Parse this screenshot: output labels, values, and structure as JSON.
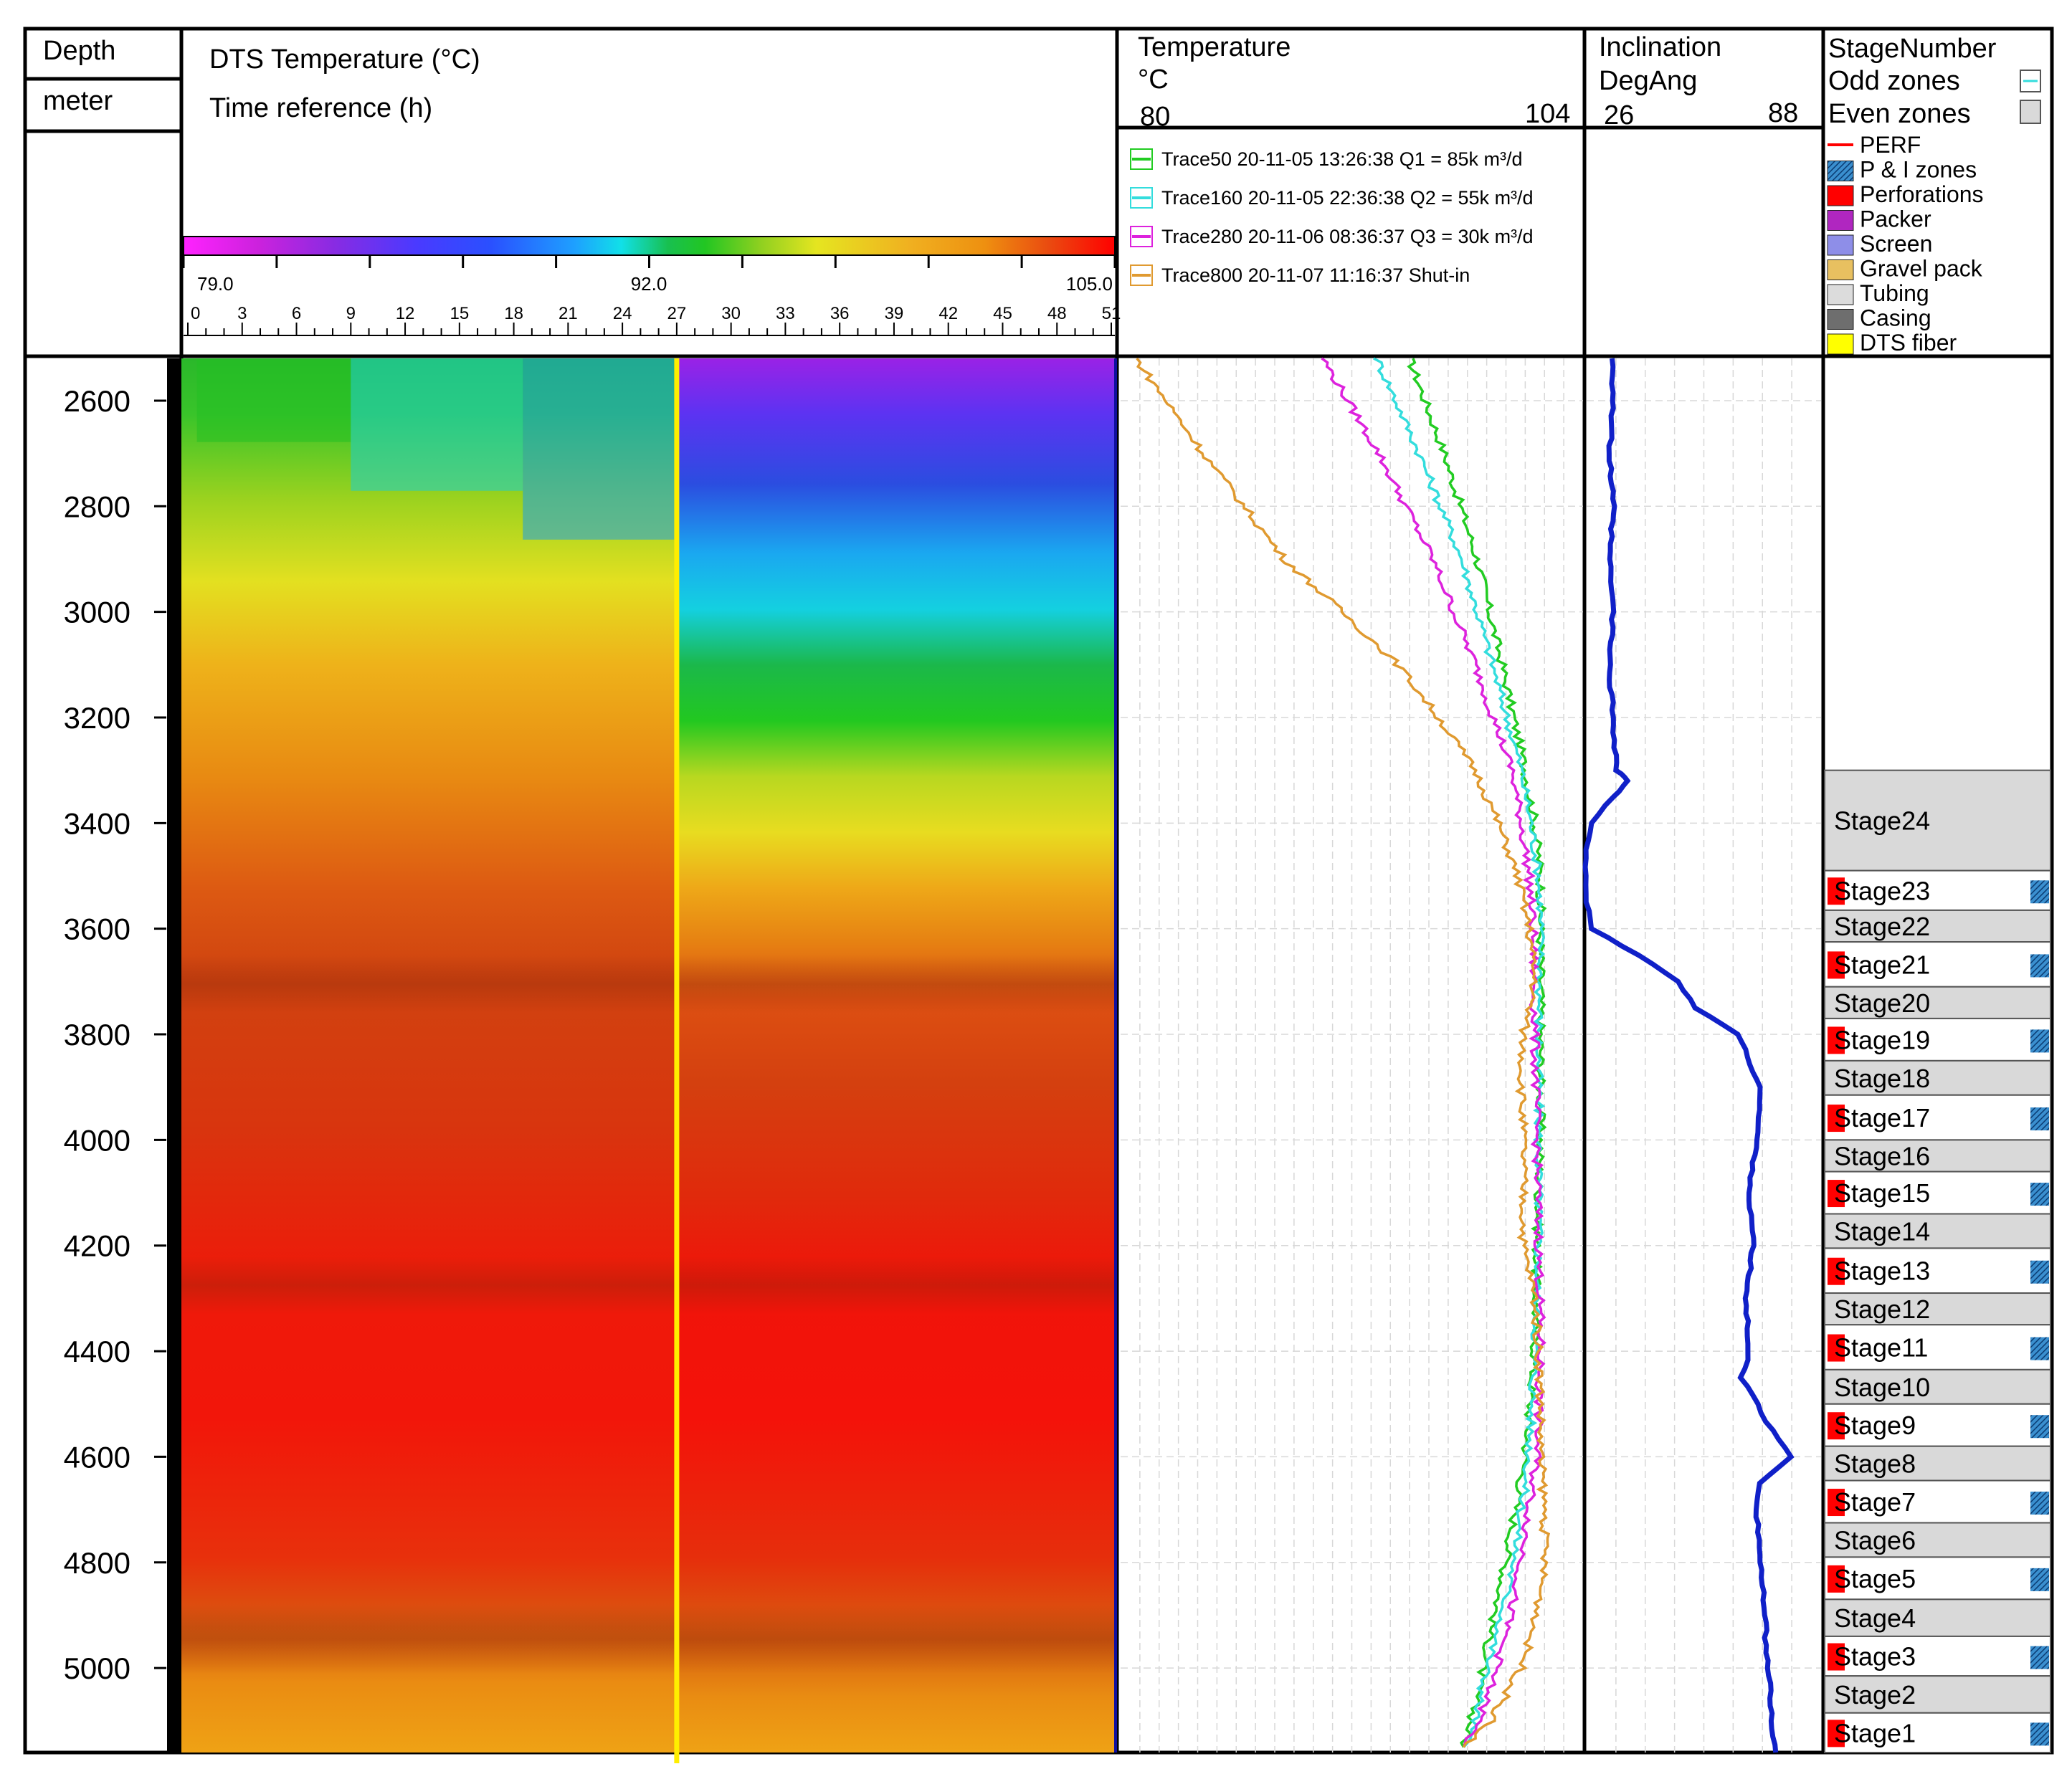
{
  "header": {
    "depth_label": "Depth",
    "depth_unit": "meter",
    "dts_title": "DTS Temperature (°C)",
    "time_ref": "Time reference (h)",
    "colorbar": {
      "min": "79.0",
      "mid": "92.0",
      "max": "105.0",
      "time_ticks": [
        "0",
        "3",
        "6",
        "9",
        "12",
        "15",
        "18",
        "21",
        "24",
        "27",
        "30",
        "33",
        "36",
        "39",
        "42",
        "45",
        "48",
        "51"
      ]
    },
    "temperature": {
      "title": "Temperature",
      "unit": "°C",
      "min": "80",
      "max": "104"
    },
    "inclination": {
      "title": "Inclination",
      "unit": "DegAng",
      "min": "26",
      "max": "88"
    },
    "stage_panel": {
      "title": "StageNumber",
      "odd_label": "Odd zones",
      "even_label": "Even zones",
      "legend": [
        "PERF",
        "P & I zones",
        "Perforations",
        "Packer",
        "Screen",
        "Gravel pack",
        "Tubing",
        "Casing",
        "DTS fiber"
      ]
    }
  },
  "depth_ticks": [
    "2600",
    "2800",
    "3000",
    "3200",
    "3400",
    "3600",
    "3800",
    "4000",
    "4200",
    "4400",
    "4600",
    "4800",
    "5000"
  ],
  "colors": {
    "trace50": "#22cc22",
    "trace160": "#33dddd",
    "trace280": "#dd22dd",
    "trace800": "#e09a30",
    "inclination": "#1020c8",
    "yellow_line": "#ffee00",
    "perforation": "#ff0000",
    "pi_zone": "#3a8fcf",
    "even_zone": "#d9d9d9"
  },
  "chart_data": [
    {
      "type": "heatmap",
      "title": "DTS Temperature (°C)",
      "xlabel": "Time reference (h)",
      "ylabel": "Depth (meter)",
      "xlim": [
        0,
        51
      ],
      "ylim": [
        2520,
        5160
      ],
      "color_range": [
        79.0,
        105.0
      ],
      "marker_time": 27
    },
    {
      "type": "line",
      "title": "Temperature",
      "xlabel": "°C",
      "xlim": [
        80,
        104
      ],
      "ylim": [
        2520,
        5160
      ],
      "series": [
        {
          "name": "Trace50 20-11-05 13:26:38 Q1 = 85k m³/d",
          "depth": [
            2520,
            2700,
            2900,
            3100,
            3300,
            3400,
            3500,
            3600,
            3800,
            4000,
            4200,
            4400,
            4600,
            4800,
            4900,
            5000,
            5100,
            5150
          ],
          "temp": [
            95.0,
            96.8,
            98.5,
            99.8,
            101.0,
            101.5,
            101.8,
            101.8,
            101.8,
            101.8,
            101.6,
            101.5,
            101.0,
            100.0,
            99.4,
            98.8,
            98.2,
            97.8
          ]
        },
        {
          "name": "Trace160 20-11-05 22:36:38 Q2 = 55k m³/d",
          "depth": [
            2520,
            2700,
            2900,
            3100,
            3300,
            3400,
            3500,
            3600,
            3800,
            4000,
            4200,
            4400,
            4600,
            4800,
            4900,
            5000,
            5100,
            5150
          ],
          "temp": [
            93.3,
            95.5,
            97.7,
            99.3,
            100.8,
            101.3,
            101.7,
            101.8,
            101.7,
            101.7,
            101.7,
            101.5,
            101.2,
            100.4,
            99.8,
            99.0,
            98.4,
            97.8
          ]
        },
        {
          "name": "Trace280 20-11-06 08:36:37 Q3 = 30k m³/d",
          "depth": [
            2520,
            2700,
            2900,
            3100,
            3300,
            3400,
            3500,
            3600,
            3800,
            4000,
            4200,
            4400,
            4600,
            4800,
            4900,
            5000,
            5100,
            5150
          ],
          "temp": [
            90.5,
            93.4,
            96.2,
            98.4,
            100.3,
            100.8,
            101.2,
            101.4,
            101.5,
            101.6,
            101.7,
            101.8,
            101.6,
            100.8,
            100.2,
            99.5,
            98.6,
            97.8
          ]
        },
        {
          "name": "Trace800 20-11-07 11:16:37 Shut-in",
          "depth": [
            2520,
            2700,
            2900,
            3000,
            3100,
            3200,
            3300,
            3400,
            3500,
            3600,
            3700,
            3800,
            3900,
            4000,
            4100,
            4200,
            4300,
            4400,
            4500,
            4600,
            4700,
            4800,
            4900,
            5000,
            5100,
            5150
          ],
          "temp": [
            80.8,
            84.3,
            88.5,
            91.5,
            94.4,
            96.5,
            98.4,
            99.6,
            100.6,
            101.2,
            101.5,
            100.9,
            100.8,
            100.9,
            100.9,
            100.9,
            101.5,
            101.7,
            101.8,
            101.8,
            102.0,
            102.0,
            101.6,
            100.8,
            99.2,
            97.8
          ]
        }
      ]
    },
    {
      "type": "line",
      "title": "Inclination",
      "xlabel": "DegAng",
      "xlim": [
        26,
        88
      ],
      "ylim": [
        2520,
        5160
      ],
      "series": [
        {
          "name": "Inclination",
          "depth": [
            2520,
            2600,
            2700,
            2800,
            2900,
            3000,
            3100,
            3200,
            3300,
            3320,
            3350,
            3400,
            3450,
            3500,
            3550,
            3600,
            3650,
            3700,
            3750,
            3800,
            3900,
            4000,
            4100,
            4200,
            4300,
            4400,
            4450,
            4500,
            4550,
            4600,
            4650,
            4700,
            4800,
            4900,
            5000,
            5100,
            5160
          ],
          "value": [
            33,
            33,
            32,
            33,
            32,
            33,
            32,
            33,
            34,
            37,
            33,
            27,
            26,
            26,
            26,
            27,
            40,
            50,
            55,
            66,
            72,
            71,
            69,
            70,
            68,
            69,
            67,
            71,
            75,
            80,
            72,
            71,
            72,
            73,
            74,
            75,
            76
          ]
        }
      ]
    }
  ],
  "stages": [
    {
      "name": "Stage24",
      "top": 3300,
      "bottom": 3490,
      "odd": false
    },
    {
      "name": "Stage23",
      "top": 3490,
      "bottom": 3565,
      "odd": true
    },
    {
      "name": "Stage22",
      "top": 3565,
      "bottom": 3625,
      "odd": false
    },
    {
      "name": "Stage21",
      "top": 3625,
      "bottom": 3710,
      "odd": true
    },
    {
      "name": "Stage20",
      "top": 3710,
      "bottom": 3770,
      "odd": false
    },
    {
      "name": "Stage19",
      "top": 3770,
      "bottom": 3850,
      "odd": true
    },
    {
      "name": "Stage18",
      "top": 3850,
      "bottom": 3915,
      "odd": false
    },
    {
      "name": "Stage17",
      "top": 3915,
      "bottom": 4000,
      "odd": true
    },
    {
      "name": "Stage16",
      "top": 4000,
      "bottom": 4060,
      "odd": false
    },
    {
      "name": "Stage15",
      "top": 4060,
      "bottom": 4140,
      "odd": true
    },
    {
      "name": "Stage14",
      "top": 4140,
      "bottom": 4205,
      "odd": false
    },
    {
      "name": "Stage13",
      "top": 4205,
      "bottom": 4290,
      "odd": true
    },
    {
      "name": "Stage12",
      "top": 4290,
      "bottom": 4350,
      "odd": false
    },
    {
      "name": "Stage11",
      "top": 4350,
      "bottom": 4435,
      "odd": true
    },
    {
      "name": "Stage10",
      "top": 4435,
      "bottom": 4500,
      "odd": false
    },
    {
      "name": "Stage9",
      "top": 4500,
      "bottom": 4580,
      "odd": true
    },
    {
      "name": "Stage8",
      "top": 4580,
      "bottom": 4645,
      "odd": false
    },
    {
      "name": "Stage7",
      "top": 4645,
      "bottom": 4725,
      "odd": true
    },
    {
      "name": "Stage6",
      "top": 4725,
      "bottom": 4790,
      "odd": false
    },
    {
      "name": "Stage5",
      "top": 4790,
      "bottom": 4870,
      "odd": true
    },
    {
      "name": "Stage4",
      "top": 4870,
      "bottom": 4940,
      "odd": false
    },
    {
      "name": "Stage3",
      "top": 4940,
      "bottom": 5015,
      "odd": true
    },
    {
      "name": "Stage2",
      "top": 5015,
      "bottom": 5085,
      "odd": false
    },
    {
      "name": "Stage1",
      "top": 5085,
      "bottom": 5160,
      "odd": true
    }
  ]
}
